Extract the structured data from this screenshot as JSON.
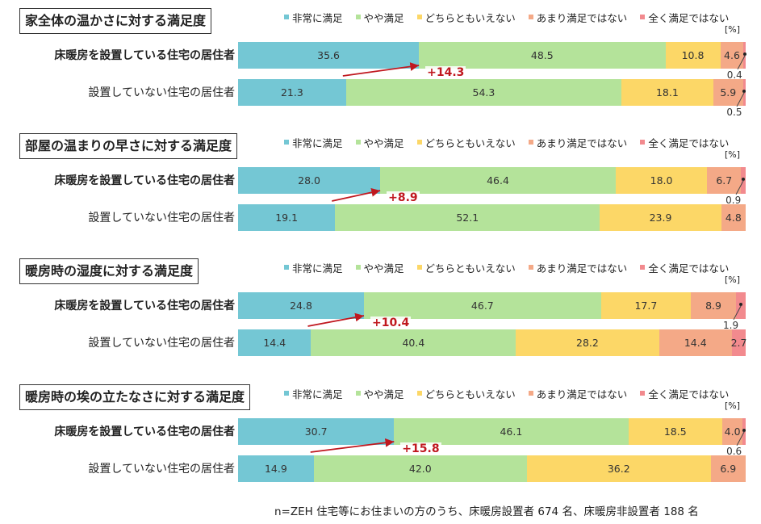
{
  "legend": [
    {
      "label": "非常に満足",
      "color": "#74c7d4"
    },
    {
      "label": "やや満足",
      "color": "#b4e39a"
    },
    {
      "label": "どちらともいえない",
      "color": "#fcd767"
    },
    {
      "label": "あまり満足ではない",
      "color": "#f4a987"
    },
    {
      "label": "全く満足ではない",
      "color": "#f28a8e"
    }
  ],
  "unit": "[%]",
  "footnote": "n=ZEH 住宅等にお住まいの方のうち、床暖房設置者 674 名、床暖房非設置者 188 名",
  "chart_data": [
    {
      "type": "bar",
      "title": "家全体の温かさに対する満足度",
      "stacked": true,
      "categories": [
        "床暖房を設置している住宅の居住者",
        "設置していない住宅の居住者"
      ],
      "series": [
        {
          "name": "非常に満足",
          "values": [
            35.6,
            21.3
          ]
        },
        {
          "name": "やや満足",
          "values": [
            48.5,
            54.3
          ]
        },
        {
          "name": "どちらともいえない",
          "values": [
            10.8,
            18.1
          ]
        },
        {
          "name": "あまり満足ではない",
          "values": [
            4.6,
            5.9
          ]
        },
        {
          "name": "全く満足ではない",
          "values": [
            0.4,
            0.5
          ]
        }
      ],
      "annotation": "+14.3"
    },
    {
      "type": "bar",
      "title": "部屋の温まりの早さに対する満足度",
      "stacked": true,
      "categories": [
        "床暖房を設置している住宅の居住者",
        "設置していない住宅の居住者"
      ],
      "series": [
        {
          "name": "非常に満足",
          "values": [
            28.0,
            19.1
          ]
        },
        {
          "name": "やや満足",
          "values": [
            46.4,
            52.1
          ]
        },
        {
          "name": "どちらともいえない",
          "values": [
            18.0,
            23.9
          ]
        },
        {
          "name": "あまり満足ではない",
          "values": [
            6.7,
            4.8
          ]
        },
        {
          "name": "全く満足ではない",
          "values": [
            0.9,
            0.0
          ]
        }
      ],
      "annotation": "+8.9"
    },
    {
      "type": "bar",
      "title": "暖房時の湿度に対する満足度",
      "stacked": true,
      "categories": [
        "床暖房を設置している住宅の居住者",
        "設置していない住宅の居住者"
      ],
      "series": [
        {
          "name": "非常に満足",
          "values": [
            24.8,
            14.4
          ]
        },
        {
          "name": "やや満足",
          "values": [
            46.7,
            40.4
          ]
        },
        {
          "name": "どちらともいえない",
          "values": [
            17.7,
            28.2
          ]
        },
        {
          "name": "あまり満足ではない",
          "values": [
            8.9,
            14.4
          ]
        },
        {
          "name": "全く満足ではない",
          "values": [
            1.9,
            2.7
          ]
        }
      ],
      "annotation": "+10.4"
    },
    {
      "type": "bar",
      "title": "暖房時の埃の立たなさに対する満足度",
      "stacked": true,
      "categories": [
        "床暖房を設置している住宅の居住者",
        "設置していない住宅の居住者"
      ],
      "series": [
        {
          "name": "非常に満足",
          "values": [
            30.7,
            14.9
          ]
        },
        {
          "name": "やや満足",
          "values": [
            46.1,
            42.0
          ]
        },
        {
          "name": "どちらともいえない",
          "values": [
            18.5,
            36.2
          ]
        },
        {
          "name": "あまり満足ではない",
          "values": [
            4.0,
            6.9
          ]
        },
        {
          "name": "全く満足ではない",
          "values": [
            0.6,
            0.0
          ]
        }
      ],
      "annotation": "+15.8"
    }
  ]
}
